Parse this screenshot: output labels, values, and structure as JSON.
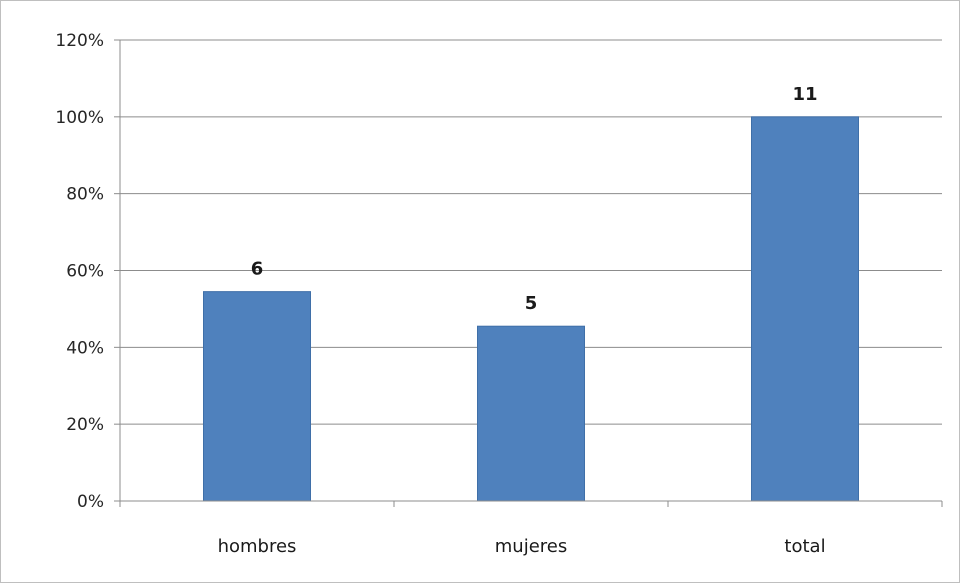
{
  "chart_data": {
    "type": "bar",
    "categories": [
      "hombres",
      "mujeres",
      "total"
    ],
    "values": [
      54.5,
      45.5,
      100
    ],
    "data_labels": [
      "6",
      "5",
      "11"
    ],
    "yticks": [
      "0%",
      "20%",
      "40%",
      "60%",
      "80%",
      "100%",
      "120%"
    ],
    "ylim": [
      0,
      120
    ],
    "grid": true,
    "legend": false,
    "colors": {
      "bar": "#4f81bd",
      "bar_edge": "#3f6fa8",
      "grid": "#8c8c8c",
      "axis": "#8c8c8c"
    }
  }
}
